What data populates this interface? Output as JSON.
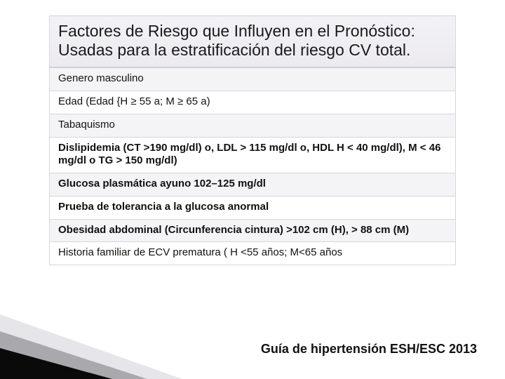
{
  "table": {
    "header": "Factores de Riesgo que Influyen en el Pronóstico: Usadas para la estratificación  del riesgo CV total.",
    "rows": [
      {
        "text": "Genero masculino",
        "bold": false,
        "alt": true
      },
      {
        "text": "Edad (Edad {H ≥ 55 a; M ≥ 65 a)",
        "bold": false,
        "alt": false
      },
      {
        "text": "Tabaquismo",
        "bold": false,
        "alt": true
      },
      {
        "text": "Dislipidemia (CT >190 mg/dl) o, LDL > 115 mg/dl o, HDL H < 40 mg/dl), M < 46 mg/dl o TG > 150 mg/dl)",
        "bold": true,
        "alt": false
      },
      {
        "text": "Glucosa plasmática ayuno 102–125 mg/dl",
        "bold": true,
        "alt": true
      },
      {
        "text": "Prueba de tolerancia a la glucosa anormal",
        "bold": true,
        "alt": false
      },
      {
        "text": "Obesidad abdominal (Circunferencia cintura) >102 cm (H), > 88 cm (M)",
        "bold": true,
        "alt": true
      },
      {
        "text": "Historia familiar de ECV prematura ( H <55 años; M<65 años",
        "bold": false,
        "alt": false
      }
    ]
  },
  "footer": "Guía de hipertensión ESH/ESC 2013",
  "wedge": {
    "dark": "#0a0a0a",
    "mid": "#a8a8ad",
    "light": "#e6e6ea"
  }
}
